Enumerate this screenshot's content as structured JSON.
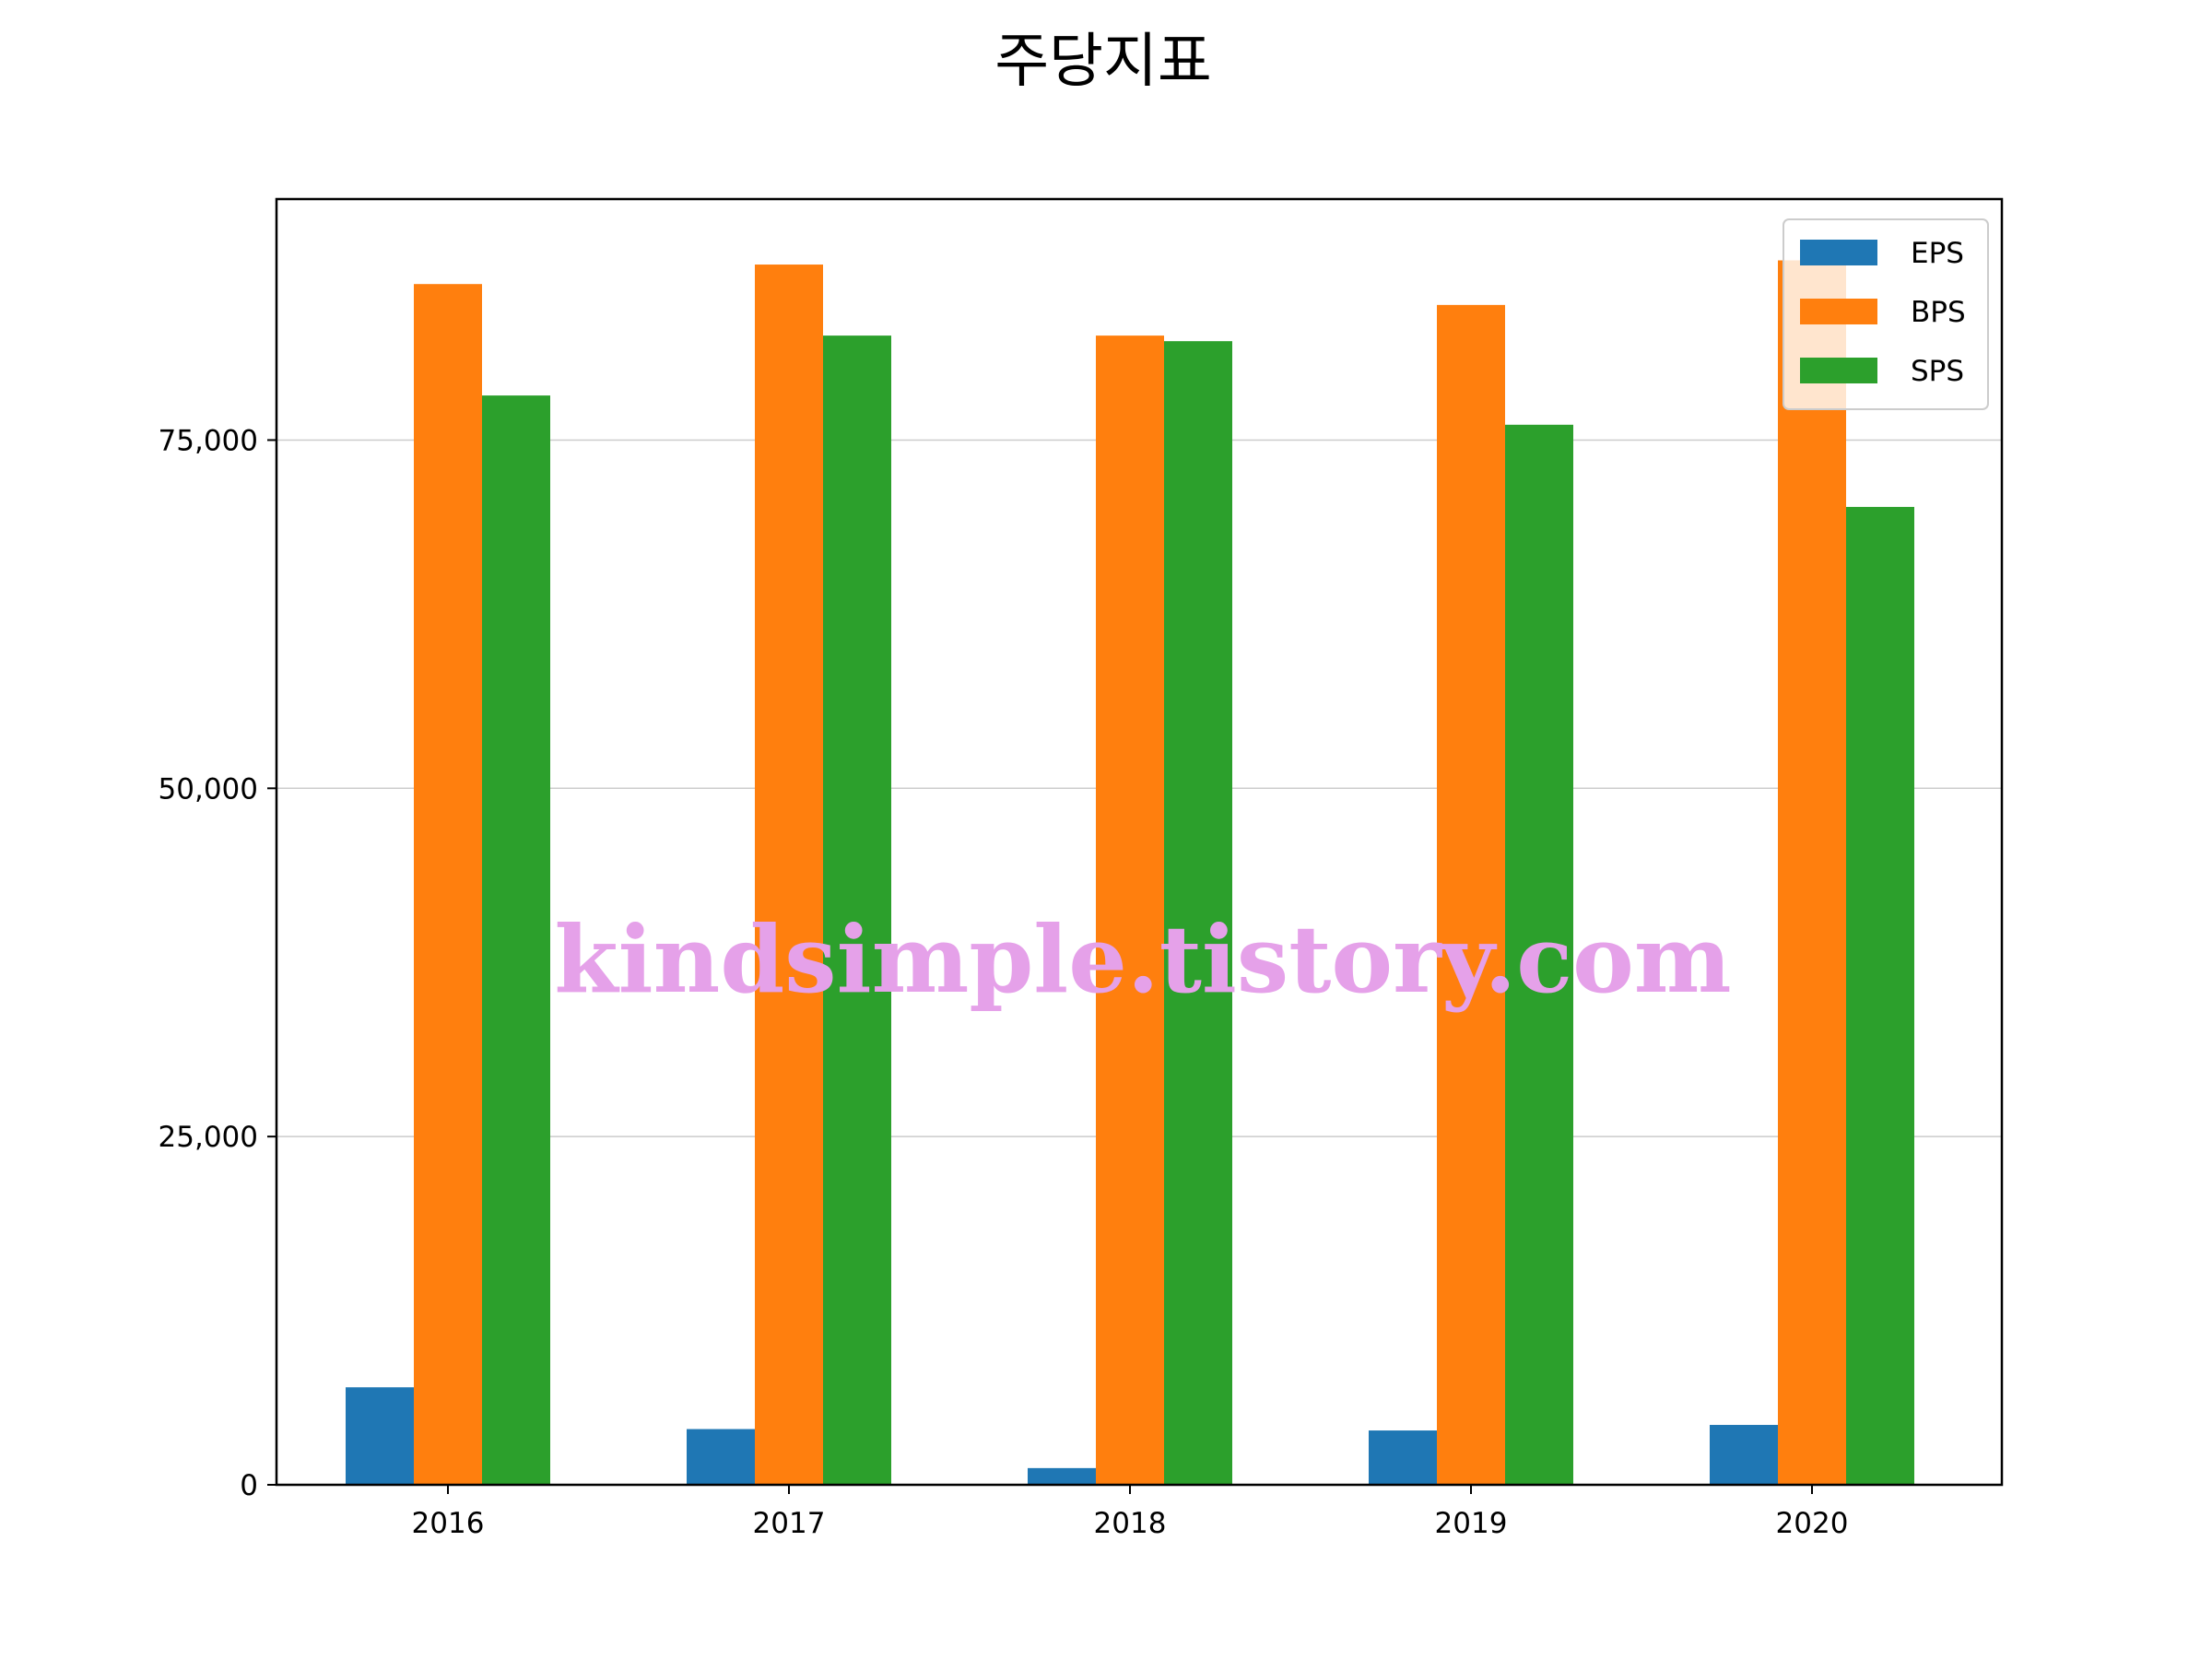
{
  "chart_data": {
    "type": "bar",
    "title": "주당지표",
    "xlabel": "",
    "ylabel": "",
    "categories": [
      "2016",
      "2017",
      "2018",
      "2019",
      "2020"
    ],
    "series": [
      {
        "name": "EPS",
        "color": "#1f77b4",
        "values": [
          7000,
          4000,
          1200,
          3900,
          4300
        ]
      },
      {
        "name": "BPS",
        "color": "#ff7f0e",
        "values": [
          86200,
          87600,
          82500,
          84700,
          87900
        ]
      },
      {
        "name": "SPS",
        "color": "#2ca02c",
        "values": [
          78200,
          82500,
          82100,
          76100,
          70200
        ]
      }
    ],
    "yticks": [
      0,
      25000,
      50000,
      75000
    ],
    "ytick_labels": [
      "0",
      "25,000",
      "50,000",
      "75,000"
    ],
    "ylim": [
      0,
      92300
    ],
    "grid": "horizontal",
    "legend_position": "top-right"
  },
  "watermark": "kindsimple.tistory.com"
}
